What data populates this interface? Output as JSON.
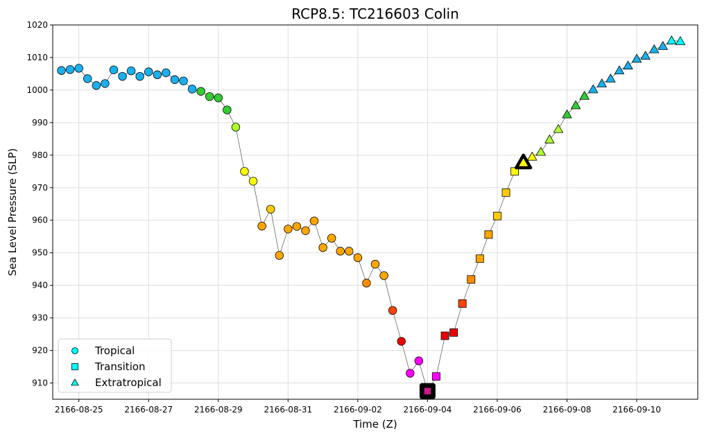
{
  "chart_data": {
    "type": "scatter",
    "title": "RCP8.5: TC216603 Colin",
    "xlabel": "Time (Z)",
    "ylabel": "Sea Level Pressure (SLP)",
    "ylim": [
      905,
      1020
    ],
    "xlim": [
      "2166-08-24 06:00",
      "2166-09-11 18:00"
    ],
    "grid": true,
    "legend_position": "lower-left",
    "xticks": [
      "2166-08-25",
      "2166-08-27",
      "2166-08-29",
      "2166-08-31",
      "2166-09-02",
      "2166-09-04",
      "2166-09-06",
      "2166-09-08",
      "2166-09-10"
    ],
    "yticks": [
      910,
      920,
      930,
      940,
      950,
      960,
      970,
      980,
      990,
      1000,
      1010,
      1020
    ],
    "legend": [
      {
        "label": "Tropical",
        "marker": "circle",
        "color": "#00ffff"
      },
      {
        "label": "Transition",
        "marker": "square",
        "color": "#00ffff"
      },
      {
        "label": "Extratropical",
        "marker": "triangle",
        "color": "#00ffff"
      }
    ],
    "series": [
      {
        "marker": "circle",
        "points": [
          {
            "t": "2166-08-24 12:00",
            "slp": 1006,
            "color": "#1ab0ee"
          },
          {
            "t": "2166-08-24 18:00",
            "slp": 1006.3,
            "color": "#1ab0ee"
          },
          {
            "t": "2166-08-25 00:00",
            "slp": 1006.7,
            "color": "#1ab0ee"
          },
          {
            "t": "2166-08-25 06:00",
            "slp": 1003.5,
            "color": "#1ab0ee"
          },
          {
            "t": "2166-08-25 12:00",
            "slp": 1001.4,
            "color": "#1ab0ee"
          },
          {
            "t": "2166-08-25 18:00",
            "slp": 1002,
            "color": "#1ab0ee"
          },
          {
            "t": "2166-08-26 00:00",
            "slp": 1006.2,
            "color": "#1ab0ee"
          },
          {
            "t": "2166-08-26 06:00",
            "slp": 1004.2,
            "color": "#1ab0ee"
          },
          {
            "t": "2166-08-26 12:00",
            "slp": 1005.9,
            "color": "#1ab0ee"
          },
          {
            "t": "2166-08-26 18:00",
            "slp": 1004.2,
            "color": "#1ab0ee"
          },
          {
            "t": "2166-08-27 00:00",
            "slp": 1005.6,
            "color": "#1ab0ee"
          },
          {
            "t": "2166-08-27 06:00",
            "slp": 1004.7,
            "color": "#1ab0ee"
          },
          {
            "t": "2166-08-27 12:00",
            "slp": 1005.3,
            "color": "#1ab0ee"
          },
          {
            "t": "2166-08-27 18:00",
            "slp": 1003.2,
            "color": "#1ab0ee"
          },
          {
            "t": "2166-08-28 00:00",
            "slp": 1002.8,
            "color": "#1ab0ee"
          },
          {
            "t": "2166-08-28 06:00",
            "slp": 1000.3,
            "color": "#1ab0ee"
          },
          {
            "t": "2166-08-28 12:00",
            "slp": 999.6,
            "color": "#33cc33"
          },
          {
            "t": "2166-08-28 18:00",
            "slp": 998,
            "color": "#33cc33"
          },
          {
            "t": "2166-08-29 00:00",
            "slp": 997.6,
            "color": "#33cc33"
          },
          {
            "t": "2166-08-29 06:00",
            "slp": 993.9,
            "color": "#33cc33"
          },
          {
            "t": "2166-08-29 12:00",
            "slp": 988.6,
            "color": "#adff2f"
          },
          {
            "t": "2166-08-29 18:00",
            "slp": 975,
            "color": "#ffff00"
          },
          {
            "t": "2166-08-30 00:00",
            "slp": 972,
            "color": "#ffff00"
          },
          {
            "t": "2166-08-30 06:00",
            "slp": 958.2,
            "color": "#ffa500"
          },
          {
            "t": "2166-08-30 12:00",
            "slp": 963.4,
            "color": "#ffcc00"
          },
          {
            "t": "2166-08-30 18:00",
            "slp": 949.2,
            "color": "#ffa500"
          },
          {
            "t": "2166-08-31 00:00",
            "slp": 957.3,
            "color": "#ffa500"
          },
          {
            "t": "2166-08-31 06:00",
            "slp": 958.1,
            "color": "#ffa500"
          },
          {
            "t": "2166-08-31 12:00",
            "slp": 956.8,
            "color": "#ffa500"
          },
          {
            "t": "2166-08-31 18:00",
            "slp": 959.8,
            "color": "#ffa500"
          },
          {
            "t": "2166-09-01 00:00",
            "slp": 951.6,
            "color": "#ffa500"
          },
          {
            "t": "2166-09-01 06:00",
            "slp": 954.5,
            "color": "#ffa500"
          },
          {
            "t": "2166-09-01 12:00",
            "slp": 950.5,
            "color": "#ffa500"
          },
          {
            "t": "2166-09-01 18:00",
            "slp": 950.5,
            "color": "#ffa500"
          },
          {
            "t": "2166-09-02 00:00",
            "slp": 948.5,
            "color": "#ffa500"
          },
          {
            "t": "2166-09-02 06:00",
            "slp": 940.7,
            "color": "#ff8c00"
          },
          {
            "t": "2166-09-02 12:00",
            "slp": 946.5,
            "color": "#ffa500"
          },
          {
            "t": "2166-09-02 18:00",
            "slp": 943,
            "color": "#ffa500"
          },
          {
            "t": "2166-09-03 00:00",
            "slp": 932.3,
            "color": "#ff4500"
          },
          {
            "t": "2166-09-03 06:00",
            "slp": 922.8,
            "color": "#ee0000"
          },
          {
            "t": "2166-09-03 12:00",
            "slp": 913,
            "color": "#ff00ff"
          },
          {
            "t": "2166-09-03 18:00",
            "slp": 916.8,
            "color": "#ff00ff"
          }
        ]
      },
      {
        "marker": "square",
        "points": [
          {
            "t": "2166-09-04 00:00",
            "slp": 907.5,
            "color": "#cc1a8c"
          },
          {
            "t": "2166-09-04 06:00",
            "slp": 912,
            "color": "#ff00ff"
          },
          {
            "t": "2166-09-04 12:00",
            "slp": 924.5,
            "color": "#ee0000"
          },
          {
            "t": "2166-09-04 18:00",
            "slp": 925.5,
            "color": "#ee0000"
          },
          {
            "t": "2166-09-05 00:00",
            "slp": 934.4,
            "color": "#ff4500"
          },
          {
            "t": "2166-09-05 06:00",
            "slp": 941.8,
            "color": "#ff8c00"
          },
          {
            "t": "2166-09-05 12:00",
            "slp": 948.2,
            "color": "#ffa500"
          },
          {
            "t": "2166-09-05 18:00",
            "slp": 955.6,
            "color": "#ffa500"
          },
          {
            "t": "2166-09-06 00:00",
            "slp": 961.3,
            "color": "#ffcc00"
          },
          {
            "t": "2166-09-06 06:00",
            "slp": 968.5,
            "color": "#ffcc00"
          },
          {
            "t": "2166-09-06 12:00",
            "slp": 975,
            "color": "#ffff00"
          }
        ]
      },
      {
        "marker": "triangle",
        "points": [
          {
            "t": "2166-09-06 18:00",
            "slp": 978,
            "color": "#ffff00"
          },
          {
            "t": "2166-09-07 00:00",
            "slp": 979.5,
            "color": "#ffff00"
          },
          {
            "t": "2166-09-07 06:00",
            "slp": 981,
            "color": "#adff2f"
          },
          {
            "t": "2166-09-07 12:00",
            "slp": 984.8,
            "color": "#adff2f"
          },
          {
            "t": "2166-09-07 18:00",
            "slp": 988,
            "color": "#adff2f"
          },
          {
            "t": "2166-09-08 00:00",
            "slp": 992.5,
            "color": "#33cc33"
          },
          {
            "t": "2166-09-08 06:00",
            "slp": 995.3,
            "color": "#33cc33"
          },
          {
            "t": "2166-09-08 12:00",
            "slp": 998.2,
            "color": "#33cc33"
          },
          {
            "t": "2166-09-08 18:00",
            "slp": 1000.2,
            "color": "#1ab0ee"
          },
          {
            "t": "2166-09-09 00:00",
            "slp": 1002,
            "color": "#1ab0ee"
          },
          {
            "t": "2166-09-09 06:00",
            "slp": 1003.5,
            "color": "#1ab0ee"
          },
          {
            "t": "2166-09-09 12:00",
            "slp": 1006,
            "color": "#1ab0ee"
          },
          {
            "t": "2166-09-09 18:00",
            "slp": 1007.5,
            "color": "#1ab0ee"
          },
          {
            "t": "2166-09-10 00:00",
            "slp": 1009.6,
            "color": "#1ab0ee"
          },
          {
            "t": "2166-09-10 06:00",
            "slp": 1010.5,
            "color": "#1ab0ee"
          },
          {
            "t": "2166-09-10 12:00",
            "slp": 1012.5,
            "color": "#1ab0ee"
          },
          {
            "t": "2166-09-10 18:00",
            "slp": 1013.5,
            "color": "#1ab0ee"
          },
          {
            "t": "2166-09-11 00:00",
            "slp": 1015.2,
            "color": "#00ffff"
          },
          {
            "t": "2166-09-11 06:00",
            "slp": 1015,
            "color": "#00ffff"
          }
        ]
      }
    ],
    "highlights": [
      {
        "t": "2166-09-04 00:00",
        "slp": 907.5,
        "marker": "square",
        "color": "#cc1a8c"
      },
      {
        "t": "2166-09-06 18:00",
        "slp": 978,
        "marker": "triangle",
        "color": "#ffff00"
      }
    ]
  }
}
